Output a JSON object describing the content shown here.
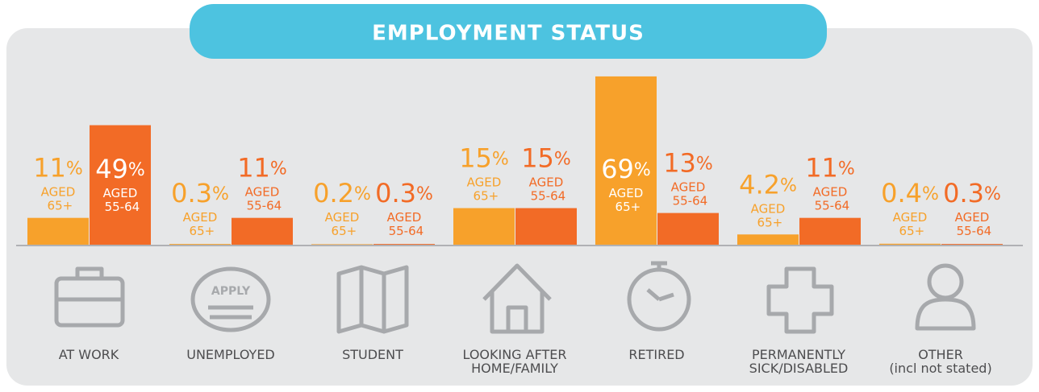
{
  "chart_data": {
    "type": "bar",
    "title": "EMPLOYMENT STATUS",
    "categories": [
      "AT WORK",
      "UNEMPLOYED",
      "STUDENT",
      "LOOKING AFTER\nHOME/FAMILY",
      "RETIRED",
      "PERMANENTLY\nSICK/DISABLED",
      "OTHER\n(incl not stated)"
    ],
    "series": [
      {
        "name": "AGED 65+",
        "color": "#f7a12b",
        "values": [
          11,
          0.3,
          0.2,
          15,
          69,
          4.2,
          0.4
        ],
        "value_labels": [
          "11%",
          "0.3%",
          "0.2%",
          "15%",
          "69%",
          "4.2%",
          "0.4%"
        ]
      },
      {
        "name": "AGED 55-64",
        "color": "#f26b26",
        "values": [
          49,
          11,
          0.3,
          15,
          13,
          11,
          0.3
        ],
        "value_labels": [
          "49%",
          "11%",
          "0.3%",
          "15%",
          "13%",
          "11%",
          "0.3%"
        ]
      }
    ]
  }
}
